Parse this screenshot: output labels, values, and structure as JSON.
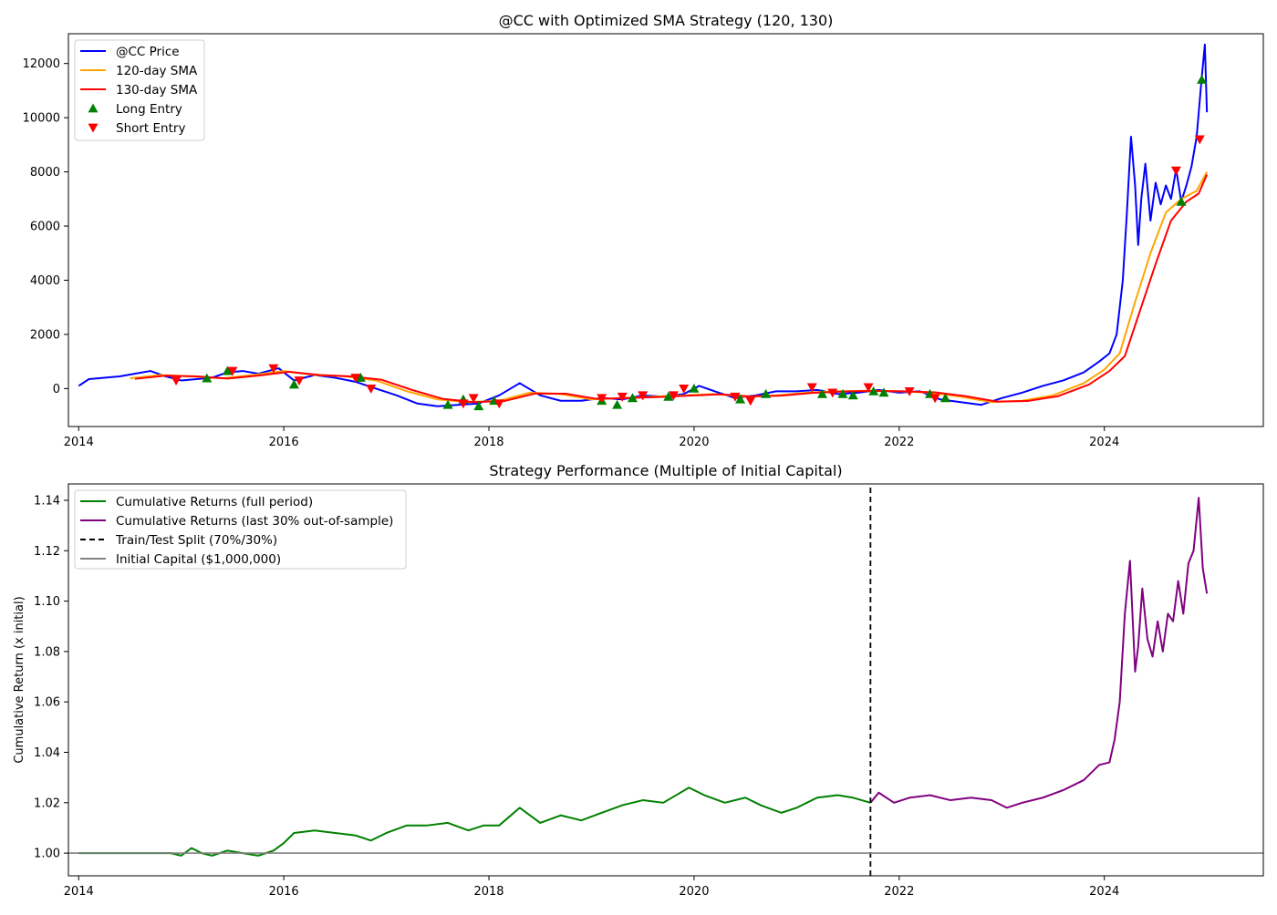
{
  "chart_data": [
    {
      "type": "line",
      "title": "@CC with Optimized SMA Strategy (120, 130)",
      "xlabel": "",
      "ylabel": "",
      "xlim": [
        2013.9,
        2025.55
      ],
      "ylim": [
        -1400,
        13100
      ],
      "xticks": [
        2014,
        2016,
        2018,
        2020,
        2022,
        2024
      ],
      "xtick_labels": [
        "2014",
        "2016",
        "2018",
        "2020",
        "2022",
        "2024"
      ],
      "yticks": [
        0,
        2000,
        4000,
        6000,
        8000,
        10000,
        12000
      ],
      "ytick_labels": [
        "0",
        "2000",
        "4000",
        "6000",
        "8000",
        "10000",
        "12000"
      ],
      "grid": false,
      "legend_position": "top-left",
      "series": [
        {
          "name": "@CC Price",
          "color": "#0000ff",
          "kind": "line",
          "x": [
            2014.0,
            2014.1,
            2014.25,
            2014.4,
            2014.55,
            2014.7,
            2014.85,
            2015.0,
            2015.15,
            2015.3,
            2015.45,
            2015.6,
            2015.75,
            2015.95,
            2016.1,
            2016.3,
            2016.5,
            2016.7,
            2016.9,
            2017.1,
            2017.3,
            2017.5,
            2017.7,
            2017.9,
            2018.1,
            2018.3,
            2018.5,
            2018.7,
            2018.9,
            2019.1,
            2019.3,
            2019.5,
            2019.7,
            2019.9,
            2020.05,
            2020.2,
            2020.4,
            2020.6,
            2020.8,
            2021.0,
            2021.2,
            2021.4,
            2021.6,
            2021.8,
            2022.0,
            2022.2,
            2022.4,
            2022.6,
            2022.8,
            2023.0,
            2023.2,
            2023.4,
            2023.6,
            2023.8,
            2023.95,
            2024.05,
            2024.12,
            2024.18,
            2024.22,
            2024.26,
            2024.3,
            2024.33,
            2024.36,
            2024.4,
            2024.45,
            2024.5,
            2024.55,
            2024.6,
            2024.65,
            2024.7,
            2024.75,
            2024.8,
            2024.85,
            2024.9,
            2024.95,
            2024.98,
            2025.0
          ],
          "y": [
            100,
            350,
            400,
            450,
            550,
            650,
            450,
            300,
            350,
            400,
            600,
            650,
            550,
            750,
            300,
            500,
            400,
            250,
            0,
            -250,
            -550,
            -650,
            -600,
            -550,
            -250,
            200,
            -250,
            -450,
            -450,
            -350,
            -400,
            -250,
            -300,
            -200,
            100,
            -100,
            -350,
            -250,
            -100,
            -100,
            -50,
            -200,
            -150,
            -50,
            -150,
            -100,
            -400,
            -500,
            -600,
            -350,
            -150,
            100,
            300,
            600,
            1000,
            1300,
            2000,
            4000,
            6500,
            9300,
            7500,
            5300,
            7000,
            8300,
            6200,
            7600,
            6800,
            7500,
            7000,
            8100,
            6900,
            7500,
            8200,
            9300,
            11500,
            12700,
            10200
          ]
        },
        {
          "name": "120-day SMA",
          "color": "#ffa500",
          "kind": "line",
          "x": [
            2014.5,
            2014.8,
            2015.1,
            2015.4,
            2015.7,
            2016.0,
            2016.3,
            2016.6,
            2016.9,
            2017.2,
            2017.5,
            2017.8,
            2018.1,
            2018.4,
            2018.7,
            2019.0,
            2019.3,
            2019.6,
            2019.9,
            2020.2,
            2020.5,
            2020.8,
            2021.1,
            2021.4,
            2021.7,
            2022.0,
            2022.3,
            2022.6,
            2022.9,
            2023.2,
            2023.5,
            2023.8,
            2024.0,
            2024.15,
            2024.3,
            2024.45,
            2024.6,
            2024.75,
            2024.9,
            2025.0
          ],
          "y": [
            380,
            500,
            450,
            380,
            500,
            650,
            500,
            450,
            300,
            -100,
            -400,
            -500,
            -450,
            -150,
            -200,
            -400,
            -350,
            -300,
            -250,
            -200,
            -300,
            -250,
            -150,
            -100,
            -80,
            -100,
            -150,
            -300,
            -500,
            -450,
            -250,
            200,
            700,
            1300,
            3200,
            5000,
            6500,
            7000,
            7300,
            8000
          ]
        },
        {
          "name": "130-day SMA",
          "color": "#ff0000",
          "kind": "line",
          "x": [
            2014.55,
            2014.85,
            2015.15,
            2015.45,
            2015.75,
            2016.05,
            2016.35,
            2016.65,
            2016.95,
            2017.25,
            2017.55,
            2017.85,
            2018.15,
            2018.45,
            2018.75,
            2019.05,
            2019.35,
            2019.65,
            2019.95,
            2020.25,
            2020.55,
            2020.85,
            2021.15,
            2021.45,
            2021.75,
            2022.05,
            2022.35,
            2022.65,
            2022.95,
            2023.25,
            2023.55,
            2023.85,
            2024.05,
            2024.2,
            2024.35,
            2024.5,
            2024.65,
            2024.8,
            2024.92,
            2025.0
          ],
          "y": [
            360,
            480,
            450,
            370,
            480,
            620,
            500,
            450,
            330,
            -50,
            -380,
            -500,
            -460,
            -180,
            -190,
            -380,
            -350,
            -310,
            -260,
            -210,
            -290,
            -260,
            -160,
            -110,
            -90,
            -100,
            -140,
            -280,
            -480,
            -460,
            -280,
            150,
            650,
            1200,
            2900,
            4600,
            6200,
            6900,
            7200,
            7900
          ]
        },
        {
          "name": "Long Entry",
          "color": "#008000",
          "kind": "marker-up",
          "x": [
            2015.25,
            2015.45,
            2016.1,
            2016.75,
            2017.6,
            2017.75,
            2017.9,
            2018.05,
            2019.1,
            2019.25,
            2019.4,
            2019.75,
            2020.0,
            2020.45,
            2020.7,
            2021.25,
            2021.45,
            2021.55,
            2021.75,
            2021.85,
            2022.3,
            2022.45,
            2024.75,
            2024.95
          ],
          "y": [
            380,
            650,
            150,
            400,
            -600,
            -400,
            -650,
            -450,
            -450,
            -600,
            -350,
            -300,
            0,
            -400,
            -200,
            -200,
            -200,
            -250,
            -100,
            -150,
            -200,
            -350,
            6900,
            11400
          ]
        },
        {
          "name": "Short Entry",
          "color": "#ff0000",
          "kind": "marker-down",
          "x": [
            2014.95,
            2015.5,
            2015.9,
            2016.15,
            2016.7,
            2016.85,
            2017.75,
            2017.85,
            2018.1,
            2019.1,
            2019.3,
            2019.5,
            2019.8,
            2019.9,
            2020.4,
            2020.55,
            2021.15,
            2021.35,
            2021.7,
            2022.1,
            2022.35,
            2024.7,
            2024.93
          ],
          "y": [
            300,
            650,
            750,
            300,
            400,
            0,
            -550,
            -350,
            -550,
            -350,
            -300,
            -250,
            -250,
            0,
            -300,
            -450,
            50,
            -150,
            50,
            -100,
            -350,
            8050,
            9200
          ]
        }
      ]
    },
    {
      "type": "line",
      "title": "Strategy Performance (Multiple of Initial Capital)",
      "xlabel": "",
      "ylabel": "Cumulative Return (x initial)",
      "xlim": [
        2013.9,
        2025.55
      ],
      "ylim": [
        0.991,
        1.1465
      ],
      "xticks": [
        2014,
        2016,
        2018,
        2020,
        2022,
        2024
      ],
      "xtick_labels": [
        "2014",
        "2016",
        "2018",
        "2020",
        "2022",
        "2024"
      ],
      "yticks": [
        1.0,
        1.02,
        1.04,
        1.06,
        1.08,
        1.1,
        1.12,
        1.14
      ],
      "ytick_labels": [
        "1.00",
        "1.02",
        "1.04",
        "1.06",
        "1.08",
        "1.10",
        "1.12",
        "1.14"
      ],
      "grid": false,
      "legend_position": "top-left",
      "series": [
        {
          "name": "Cumulative Returns (full period)",
          "color": "#008000",
          "kind": "line",
          "x": [
            2014.0,
            2014.9,
            2015.0,
            2015.1,
            2015.2,
            2015.3,
            2015.45,
            2015.6,
            2015.75,
            2015.9,
            2016.0,
            2016.1,
            2016.3,
            2016.5,
            2016.7,
            2016.85,
            2017.0,
            2017.2,
            2017.4,
            2017.6,
            2017.8,
            2017.95,
            2018.1,
            2018.3,
            2018.5,
            2018.7,
            2018.9,
            2019.1,
            2019.3,
            2019.5,
            2019.7,
            2019.95,
            2020.1,
            2020.3,
            2020.5,
            2020.65,
            2020.85,
            2021.0,
            2021.2,
            2021.4,
            2021.55,
            2021.72
          ],
          "y": [
            1.0,
            1.0,
            0.999,
            1.002,
            1.0,
            0.999,
            1.001,
            1.0,
            0.999,
            1.001,
            1.004,
            1.008,
            1.009,
            1.008,
            1.007,
            1.005,
            1.008,
            1.011,
            1.011,
            1.012,
            1.009,
            1.011,
            1.011,
            1.018,
            1.012,
            1.015,
            1.013,
            1.016,
            1.019,
            1.021,
            1.02,
            1.026,
            1.023,
            1.02,
            1.022,
            1.019,
            1.016,
            1.018,
            1.022,
            1.023,
            1.022,
            1.02
          ]
        },
        {
          "name": "Cumulative Returns (last 30% out-of-sample)",
          "color": "#800080",
          "kind": "line",
          "x": [
            2021.72,
            2021.8,
            2021.95,
            2022.1,
            2022.3,
            2022.5,
            2022.7,
            2022.9,
            2023.05,
            2023.2,
            2023.4,
            2023.6,
            2023.8,
            2023.95,
            2024.05,
            2024.1,
            2024.15,
            2024.2,
            2024.25,
            2024.3,
            2024.33,
            2024.37,
            2024.42,
            2024.47,
            2024.52,
            2024.57,
            2024.62,
            2024.67,
            2024.72,
            2024.77,
            2024.82,
            2024.87,
            2024.92,
            2024.96,
            2025.0
          ],
          "y": [
            1.02,
            1.024,
            1.02,
            1.022,
            1.023,
            1.021,
            1.022,
            1.021,
            1.018,
            1.02,
            1.022,
            1.025,
            1.029,
            1.035,
            1.036,
            1.045,
            1.06,
            1.095,
            1.116,
            1.072,
            1.082,
            1.105,
            1.085,
            1.078,
            1.092,
            1.08,
            1.095,
            1.092,
            1.108,
            1.095,
            1.115,
            1.12,
            1.141,
            1.113,
            1.103
          ]
        },
        {
          "name": "Train/Test Split (70%/30%)",
          "color": "#000000",
          "kind": "vline-dashed",
          "x": [
            2021.72,
            2021.72
          ],
          "y": [
            0.991,
            1.1465
          ]
        },
        {
          "name": "Initial Capital ($1,000,000)",
          "color": "#808080",
          "kind": "hline",
          "x": [
            2013.9,
            2025.55
          ],
          "y": [
            1.0,
            1.0
          ]
        }
      ]
    }
  ]
}
